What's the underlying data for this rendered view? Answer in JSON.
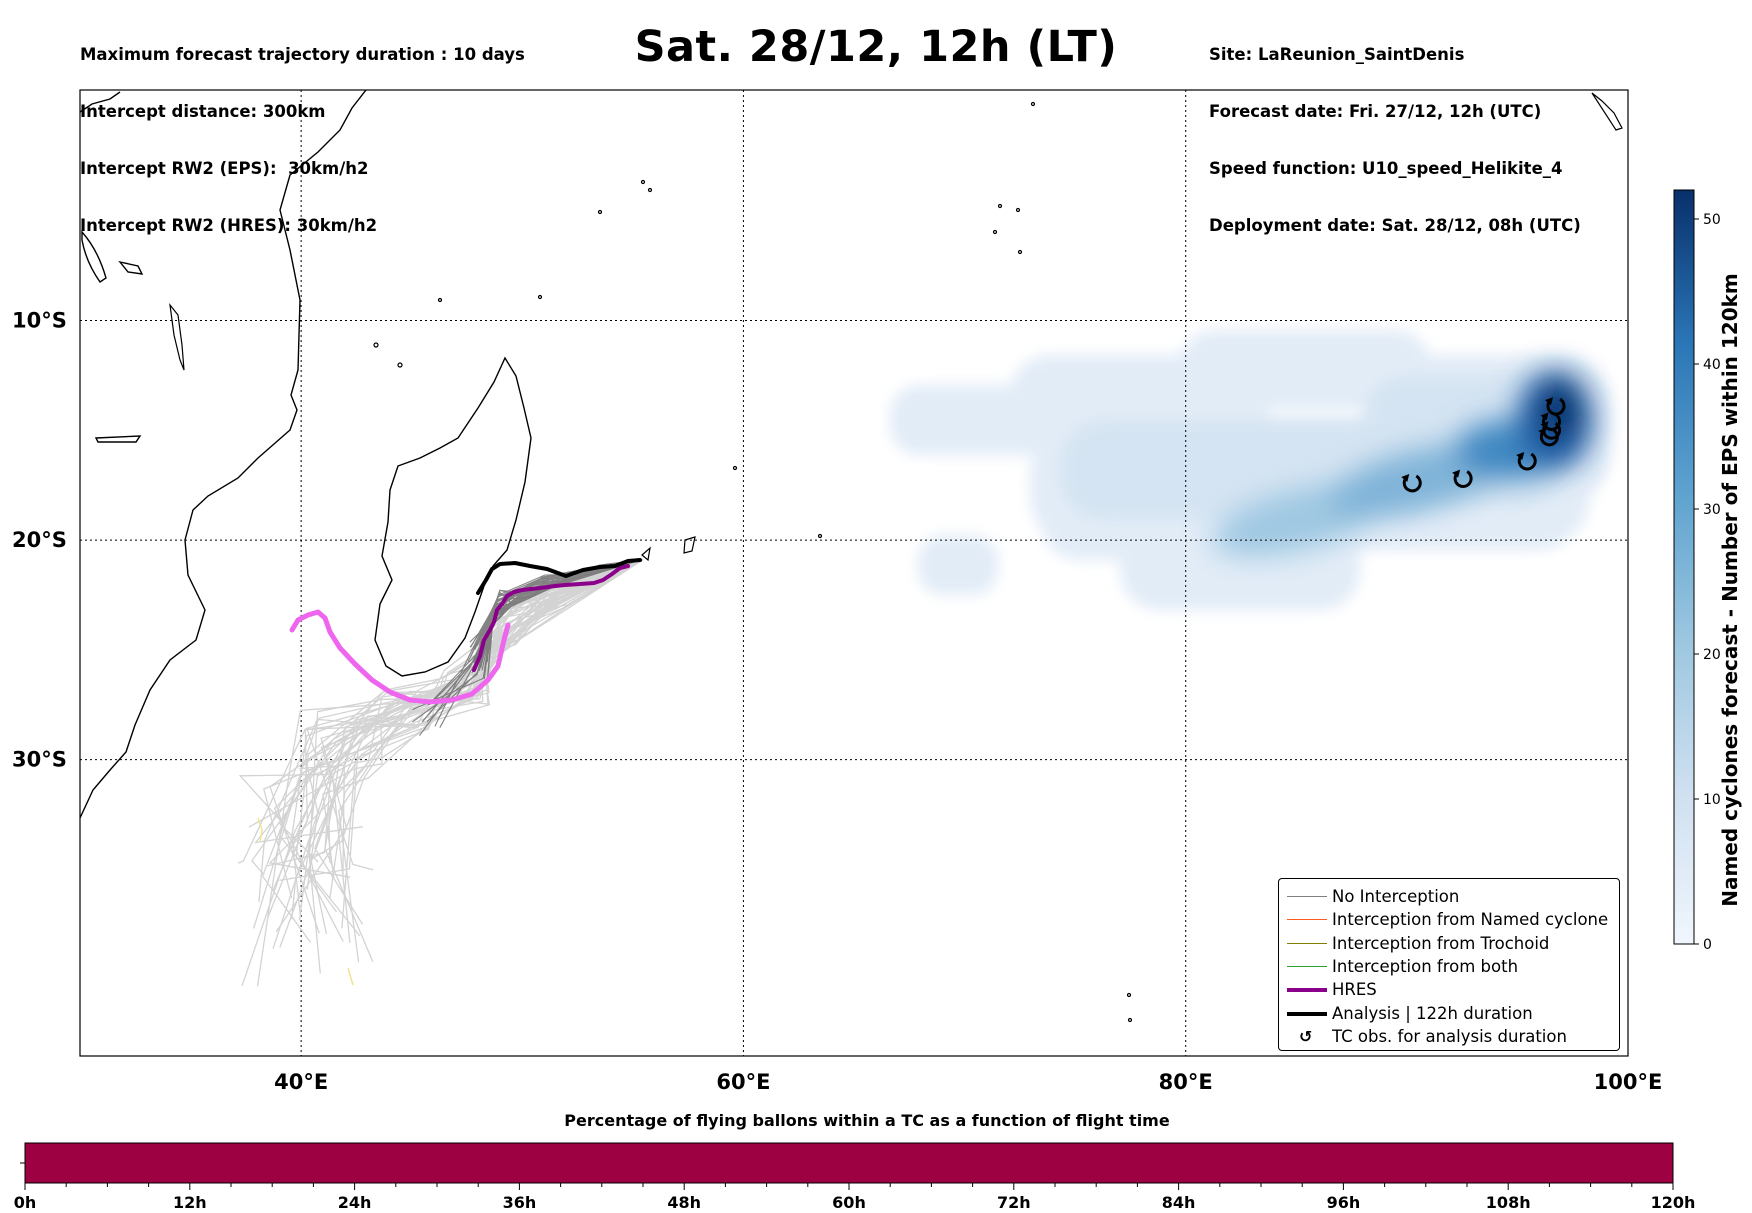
{
  "header": {
    "left": [
      "Maximum forecast trajectory duration : 10 days",
      "Intercept distance: 300km",
      "Intercept RW2 (EPS):  30km/h2",
      "Intercept RW2 (HRES): 30km/h2"
    ],
    "right": [
      "Site: LaReunion_SaintDenis",
      "Forecast date: Fri. 27/12, 12h (UTC)",
      "Speed function: U10_speed_Helikite_4",
      "Deployment date: Sat. 28/12, 08h (UTC)"
    ],
    "title": "Sat. 28/12, 12h (LT)"
  },
  "map": {
    "lon_range": [
      30,
      100
    ],
    "lat_range": [
      -43.5,
      0.5
    ],
    "lon_ticks": [
      {
        "value": 40,
        "label": "40°E"
      },
      {
        "value": 60,
        "label": "60°E"
      },
      {
        "value": 80,
        "label": "80°E"
      },
      {
        "value": 100,
        "label": "100°E"
      }
    ],
    "lat_ticks": [
      {
        "value": -10,
        "label": "10°S"
      },
      {
        "value": -20,
        "label": "20°S"
      },
      {
        "value": -30,
        "label": "30°S"
      }
    ],
    "site": {
      "name": "LaReunion_SaintDenis",
      "lon": 55.45,
      "lat": -20.9
    },
    "tc_observations": [
      {
        "lon": 90.2,
        "lat": -17.4
      },
      {
        "lon": 92.5,
        "lat": -17.2
      },
      {
        "lon": 95.4,
        "lat": -16.4
      },
      {
        "lon": 96.4,
        "lat": -15.3
      },
      {
        "lon": 96.5,
        "lat": -14.6
      },
      {
        "lon": 96.7,
        "lat": -13.9
      },
      {
        "lon": 96.5,
        "lat": -15.0
      }
    ]
  },
  "legend": {
    "items": [
      {
        "label": "No Interception",
        "color": "#808080",
        "kind": "line-thin"
      },
      {
        "label": "Interception from Named cyclone",
        "color": "#ff5a1f",
        "kind": "line-thin"
      },
      {
        "label": "Interception from Trochoid",
        "color": "#808000",
        "kind": "line-thin"
      },
      {
        "label": "Interception from both",
        "color": "#2ca02c",
        "kind": "line-thin"
      },
      {
        "label": "HRES",
        "color": "#8b008b",
        "kind": "line-thick"
      },
      {
        "label": "Analysis | 122h duration",
        "color": "#000000",
        "kind": "line-thick"
      },
      {
        "label": "TC obs. for analysis duration",
        "color": "#000000",
        "kind": "symbol"
      }
    ]
  },
  "colorbar": {
    "title": "Named cyclones forecast - Number of EPS within 120km",
    "min": 0,
    "max": 52,
    "ticks": [
      0,
      10,
      20,
      30,
      40,
      50
    ],
    "color_low": "#f0f6fc",
    "color_high": "#08306b"
  },
  "timebar": {
    "title": "Percentage of flying ballons within a TC as a function of flight time",
    "fill_color": "#9e0142",
    "ticks": [
      "0h",
      "12h",
      "24h",
      "36h",
      "48h",
      "60h",
      "72h",
      "84h",
      "96h",
      "108h",
      "120h"
    ]
  },
  "colors": {
    "hres_ensemble_member": "#ee66ee",
    "hres": "#8b008b",
    "analysis": "#000000",
    "eps_far": "#d3d3d3",
    "eps_near": "#6e6e6e"
  }
}
